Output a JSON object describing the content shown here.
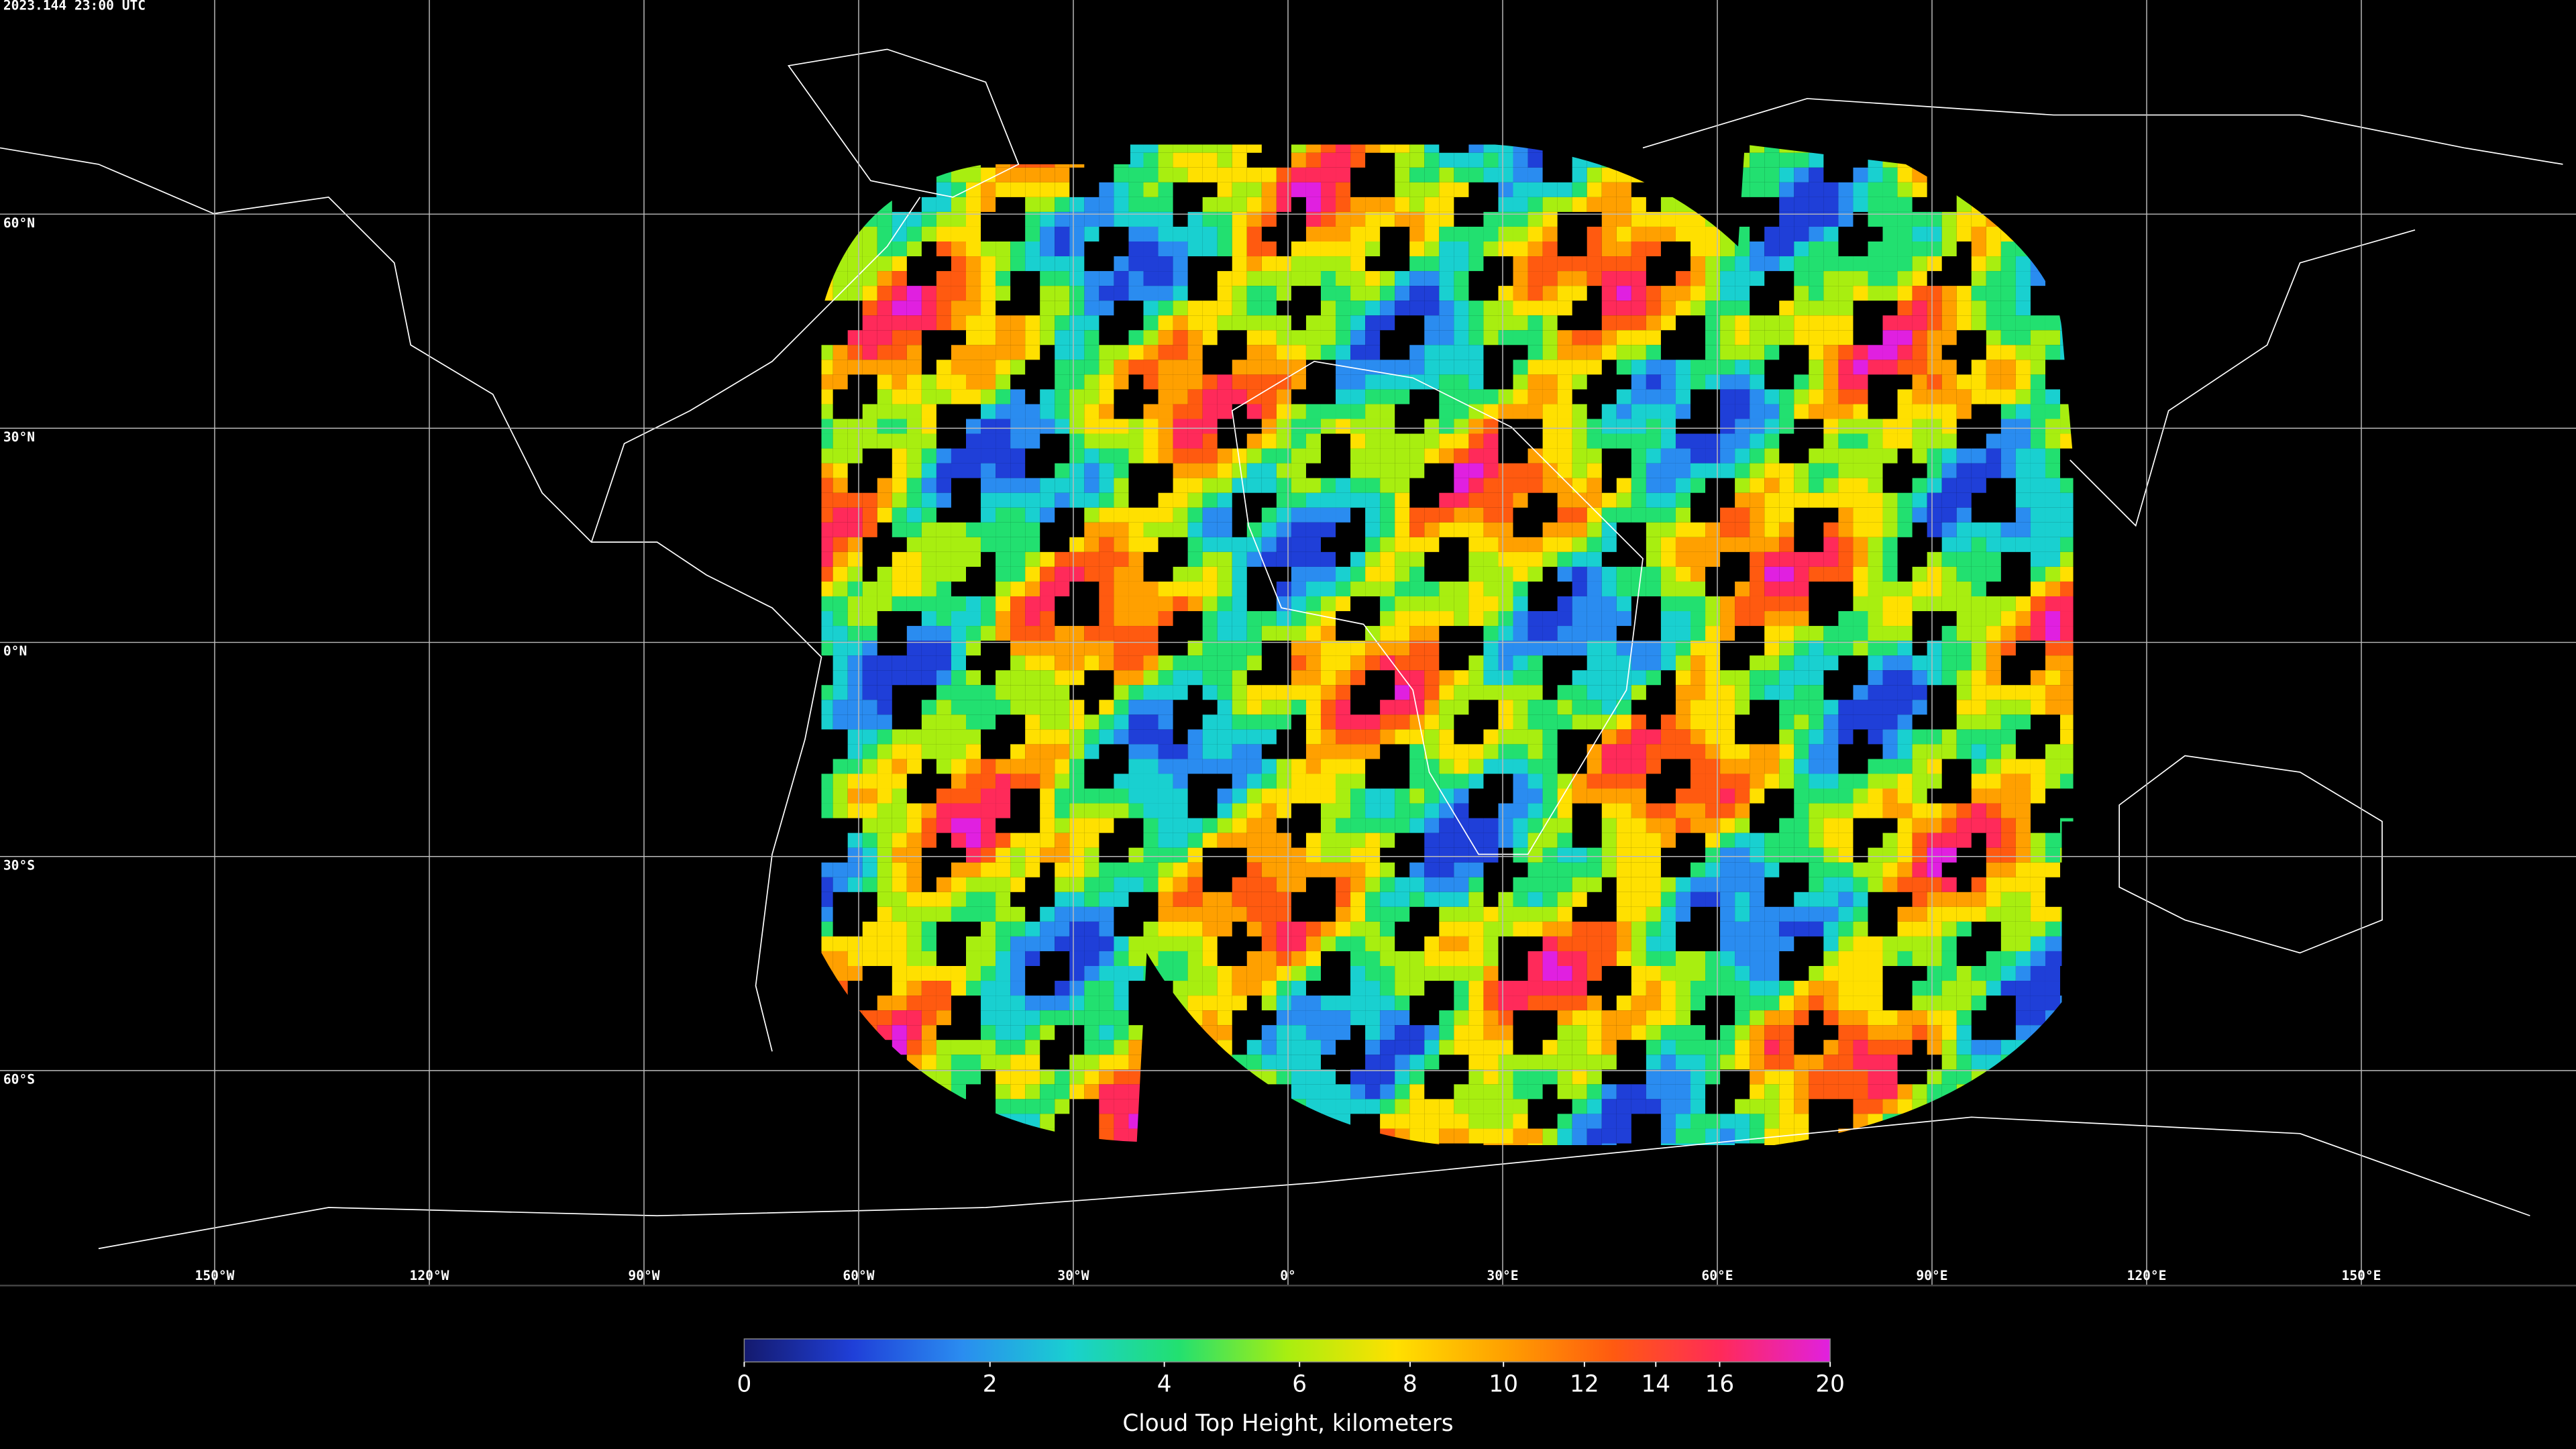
{
  "map": {
    "timestamp": "2023.144 23:00 UTC",
    "lat_ticks": [
      {
        "value": 60,
        "label": "60°N"
      },
      {
        "value": 30,
        "label": "30°N"
      },
      {
        "value": 0,
        "label": "0°N"
      },
      {
        "value": -30,
        "label": "30°S"
      },
      {
        "value": -60,
        "label": "60°S"
      }
    ],
    "lon_ticks": [
      {
        "value": -150,
        "label": "150°W"
      },
      {
        "value": -120,
        "label": "120°W"
      },
      {
        "value": -90,
        "label": "90°W"
      },
      {
        "value": -60,
        "label": "60°W"
      },
      {
        "value": -30,
        "label": "30°W"
      },
      {
        "value": 0,
        "label": "0°"
      },
      {
        "value": 30,
        "label": "30°E"
      },
      {
        "value": 60,
        "label": "60°E"
      },
      {
        "value": 90,
        "label": "90°E"
      },
      {
        "value": 120,
        "label": "120°E"
      },
      {
        "value": 150,
        "label": "150°E"
      }
    ],
    "colorbar": {
      "title": "Cloud Top Height, kilometers",
      "lim": [
        0,
        20
      ],
      "ticks": [
        0,
        2,
        4,
        6,
        8,
        10,
        12,
        14,
        16,
        20
      ],
      "colormap": [
        "#141a6e",
        "#1f3fd8",
        "#2a8cf0",
        "#19d0d0",
        "#22e070",
        "#a8ee10",
        "#ffe000",
        "#ffa000",
        "#ff5a10",
        "#ff2a5a",
        "#e020e0"
      ]
    }
  }
}
